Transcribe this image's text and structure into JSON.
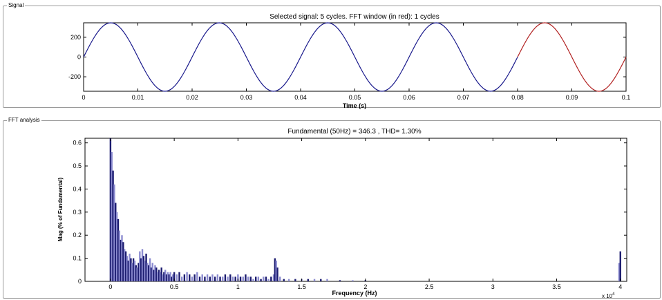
{
  "signal_panel": {
    "title": "Signal",
    "chart_title": "Selected signal: 5 cycles. FFT window (in red): 1 cycles",
    "xlabel": "Time (s)",
    "ylabel": ""
  },
  "fft_panel": {
    "title": "FFT analysis",
    "chart_title": "Fundamental (50Hz) = 346.3 , THD= 1.30%",
    "xlabel": "Frequency (Hz)",
    "ylabel": "Mag (% of Fundamental)",
    "x_multiplier": "x 10",
    "x_exponent": "4"
  },
  "colors": {
    "signal_line": "#1a1a8c",
    "fft_window_line": "#b22222",
    "bar_dark": "#1c1c70",
    "bar_light": "#8c8cd0",
    "panel_border": "#9a9a9a"
  },
  "chart_data": [
    {
      "type": "line",
      "title": "Selected signal: 5 cycles. FFT window (in red): 1 cycles",
      "xlabel": "Time (s)",
      "ylabel": "",
      "xlim": [
        0,
        0.1
      ],
      "ylim": [
        -346.3,
        346.3
      ],
      "xticks": [
        0,
        0.01,
        0.02,
        0.03,
        0.04,
        0.05,
        0.06,
        0.07,
        0.08,
        0.09,
        0.1
      ],
      "xtick_labels": [
        "0",
        "0.01",
        "0.02",
        "0.03",
        "0.04",
        "0.05",
        "0.06",
        "0.07",
        "0.08",
        "0.09",
        "0.1"
      ],
      "yticks": [
        200,
        0,
        -200
      ],
      "ytick_labels": [
        "200",
        "0",
        "-200"
      ],
      "series": [
        {
          "name": "",
          "function": "sine",
          "amplitude": 346.3,
          "frequency_hz": 50,
          "x_range": [
            0,
            0.08
          ],
          "color": "#1a1a8c"
        },
        {
          "name": "",
          "function": "sine",
          "amplitude": 346.3,
          "frequency_hz": 50,
          "x_range": [
            0.08,
            0.1
          ],
          "color": "#b22222"
        }
      ],
      "grid": false
    },
    {
      "type": "bar",
      "title": "Fundamental (50Hz) = 346.3 , THD= 1.30%",
      "xlabel": "Frequency (Hz)",
      "ylabel": "Mag (% of Fundamental)",
      "xlim": [
        -0.2,
        4.05
      ],
      "ylim": [
        0,
        0.62
      ],
      "xticks": [
        0,
        0.5,
        1,
        1.5,
        2,
        2.5,
        3,
        3.5,
        4
      ],
      "xtick_labels": [
        "0",
        "0.5",
        "1",
        "1.5",
        "2",
        "2.5",
        "3",
        "3.5",
        "4"
      ],
      "yticks": [
        0,
        0.1,
        0.2,
        0.3,
        0.4,
        0.5,
        0.6
      ],
      "ytick_labels": [
        "0",
        "0.1",
        "0.2",
        "0.3",
        "0.4",
        "0.5",
        "0.6"
      ],
      "x_unit_multiplier": "x 10^4",
      "bars": [
        [
          0.0,
          0.62
        ],
        [
          0.01,
          0.56
        ],
        [
          0.02,
          0.48
        ],
        [
          0.03,
          0.42
        ],
        [
          0.04,
          0.34
        ],
        [
          0.05,
          0.3
        ],
        [
          0.06,
          0.27
        ],
        [
          0.07,
          0.22
        ],
        [
          0.08,
          0.18
        ],
        [
          0.09,
          0.2
        ],
        [
          0.1,
          0.17
        ],
        [
          0.11,
          0.14
        ],
        [
          0.12,
          0.13
        ],
        [
          0.13,
          0.11
        ],
        [
          0.14,
          0.09
        ],
        [
          0.15,
          0.12
        ],
        [
          0.16,
          0.1
        ],
        [
          0.17,
          0.08
        ],
        [
          0.18,
          0.1
        ],
        [
          0.19,
          0.09
        ],
        [
          0.2,
          0.07
        ],
        [
          0.21,
          0.06
        ],
        [
          0.22,
          0.08
        ],
        [
          0.23,
          0.13
        ],
        [
          0.24,
          0.1
        ],
        [
          0.25,
          0.14
        ],
        [
          0.26,
          0.11
        ],
        [
          0.27,
          0.09
        ],
        [
          0.28,
          0.12
        ],
        [
          0.29,
          0.08
        ],
        [
          0.3,
          0.07
        ],
        [
          0.31,
          0.1
        ],
        [
          0.32,
          0.06
        ],
        [
          0.33,
          0.08
        ],
        [
          0.34,
          0.05
        ],
        [
          0.35,
          0.07
        ],
        [
          0.36,
          0.06
        ],
        [
          0.37,
          0.04
        ],
        [
          0.38,
          0.05
        ],
        [
          0.39,
          0.04
        ],
        [
          0.4,
          0.06
        ],
        [
          0.41,
          0.03
        ],
        [
          0.42,
          0.04
        ],
        [
          0.43,
          0.05
        ],
        [
          0.44,
          0.03
        ],
        [
          0.45,
          0.04
        ],
        [
          0.46,
          0.03
        ],
        [
          0.47,
          0.04
        ],
        [
          0.48,
          0.02
        ],
        [
          0.49,
          0.03
        ],
        [
          0.5,
          0.04
        ],
        [
          0.52,
          0.03
        ],
        [
          0.54,
          0.04
        ],
        [
          0.56,
          0.02
        ],
        [
          0.58,
          0.03
        ],
        [
          0.6,
          0.04
        ],
        [
          0.62,
          0.03
        ],
        [
          0.64,
          0.02
        ],
        [
          0.66,
          0.03
        ],
        [
          0.68,
          0.04
        ],
        [
          0.7,
          0.02
        ],
        [
          0.72,
          0.03
        ],
        [
          0.74,
          0.02
        ],
        [
          0.76,
          0.03
        ],
        [
          0.78,
          0.02
        ],
        [
          0.8,
          0.03
        ],
        [
          0.82,
          0.02
        ],
        [
          0.84,
          0.03
        ],
        [
          0.86,
          0.02
        ],
        [
          0.88,
          0.02
        ],
        [
          0.9,
          0.03
        ],
        [
          0.92,
          0.02
        ],
        [
          0.94,
          0.03
        ],
        [
          0.96,
          0.02
        ],
        [
          0.98,
          0.02
        ],
        [
          1.0,
          0.03
        ],
        [
          1.02,
          0.02
        ],
        [
          1.04,
          0.02
        ],
        [
          1.06,
          0.03
        ],
        [
          1.08,
          0.02
        ],
        [
          1.1,
          0.02
        ],
        [
          1.12,
          0.01
        ],
        [
          1.14,
          0.02
        ],
        [
          1.16,
          0.02
        ],
        [
          1.18,
          0.01
        ],
        [
          1.2,
          0.02
        ],
        [
          1.22,
          0.02
        ],
        [
          1.24,
          0.01
        ],
        [
          1.26,
          0.02
        ],
        [
          1.28,
          0.03
        ],
        [
          1.29,
          0.1
        ],
        [
          1.3,
          0.09
        ],
        [
          1.31,
          0.06
        ],
        [
          1.33,
          0.02
        ],
        [
          1.36,
          0.01
        ],
        [
          1.4,
          0.01
        ],
        [
          1.45,
          0.01
        ],
        [
          1.5,
          0.01
        ],
        [
          1.55,
          0.01
        ],
        [
          1.6,
          0.01
        ],
        [
          1.65,
          0.01
        ],
        [
          1.7,
          0.01
        ],
        [
          1.8,
          0.005
        ],
        [
          1.9,
          0.005
        ],
        [
          2.0,
          0.005
        ],
        [
          3.99,
          0.08
        ],
        [
          4.0,
          0.13
        ]
      ],
      "grid": false
    }
  ]
}
